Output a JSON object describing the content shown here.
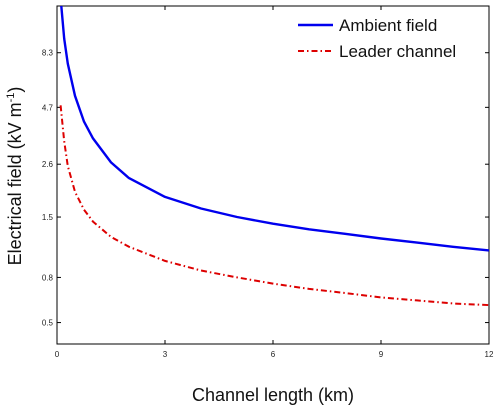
{
  "chart_data": {
    "type": "line",
    "xlabel": "Channel length (km)",
    "ylabel": "Electrical field (kV m",
    "ylabel_sup": "-1",
    "ylabel_close": ")",
    "xlim": [
      0,
      12
    ],
    "ylim": [
      0.4,
      13.5
    ],
    "yscale": "log",
    "xticks": [
      0,
      3,
      6,
      9,
      12
    ],
    "xtick_labels": [
      "0",
      "3",
      "6",
      "9",
      "12"
    ],
    "yticks": [
      0.5,
      0.8,
      1.5,
      2.6,
      4.7,
      8.3
    ],
    "ytick_labels": [
      "0.5",
      "0.8",
      "1.5",
      "2.6",
      "4.7",
      "8.3"
    ],
    "grid": false,
    "legend_position": "top-right",
    "series": [
      {
        "name": "Ambient field",
        "color": "#0000ee",
        "style": "solid",
        "x": [
          0.12,
          0.2,
          0.3,
          0.5,
          0.75,
          1.0,
          1.5,
          2.0,
          3.0,
          4.0,
          5.0,
          6.0,
          7.0,
          8.0,
          9.0,
          10.0,
          11.0,
          12.0
        ],
        "y": [
          13.5,
          9.6,
          7.4,
          5.3,
          4.05,
          3.4,
          2.65,
          2.25,
          1.85,
          1.64,
          1.5,
          1.4,
          1.32,
          1.26,
          1.2,
          1.15,
          1.1,
          1.06
        ]
      },
      {
        "name": "Leader channel",
        "color": "#dd0000",
        "style": "dashdot",
        "x": [
          0.1,
          0.2,
          0.3,
          0.5,
          0.75,
          1.0,
          1.5,
          2.0,
          3.0,
          4.0,
          5.0,
          6.0,
          7.0,
          8.0,
          9.0,
          10.0,
          11.0,
          12.0
        ],
        "y": [
          4.8,
          3.3,
          2.55,
          1.95,
          1.62,
          1.43,
          1.22,
          1.1,
          0.95,
          0.86,
          0.8,
          0.75,
          0.71,
          0.68,
          0.65,
          0.63,
          0.61,
          0.6
        ]
      }
    ]
  }
}
